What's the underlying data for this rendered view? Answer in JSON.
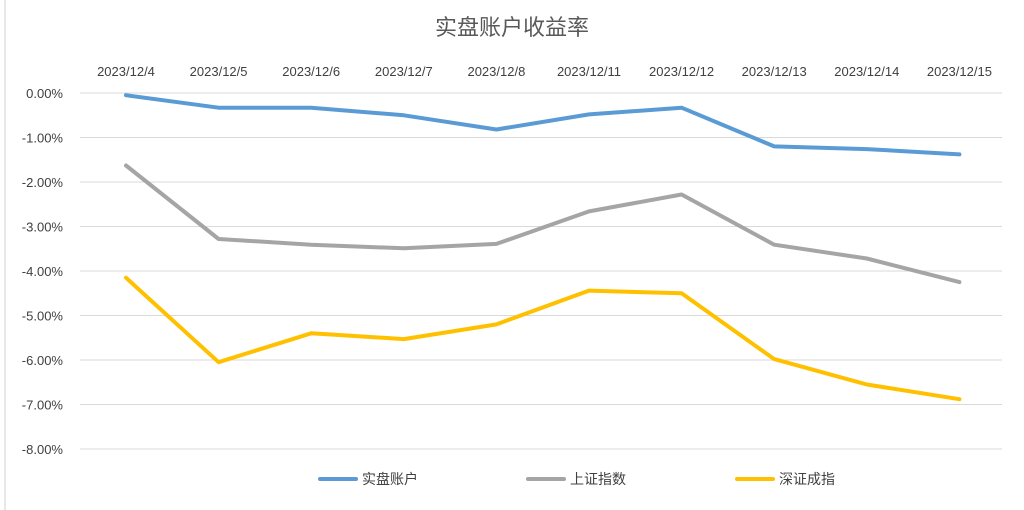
{
  "chart_data": {
    "type": "line",
    "title": "实盘账户收益率",
    "xlabel": "",
    "ylabel": "",
    "categories": [
      "2023/12/4",
      "2023/12/5",
      "2023/12/6",
      "2023/12/7",
      "2023/12/8",
      "2023/12/11",
      "2023/12/12",
      "2023/12/13",
      "2023/12/14",
      "2023/12/15"
    ],
    "ylim": [
      -8,
      0
    ],
    "yticks": [
      "0.00%",
      "-1.00%",
      "-2.00%",
      "-3.00%",
      "-4.00%",
      "-5.00%",
      "-6.00%",
      "-7.00%",
      "-8.00%"
    ],
    "x_axis_position": "top",
    "grid": true,
    "legend_position": "bottom",
    "series": [
      {
        "name": "实盘账户",
        "color": "#5b9bd5",
        "values": [
          -0.05,
          -0.33,
          -0.33,
          -0.5,
          -0.82,
          -0.48,
          -0.33,
          -1.2,
          -1.26,
          -1.38
        ]
      },
      {
        "name": "上证指数",
        "color": "#a5a5a5",
        "values": [
          -1.63,
          -3.28,
          -3.41,
          -3.49,
          -3.39,
          -2.66,
          -2.28,
          -3.41,
          -3.72,
          -4.25
        ]
      },
      {
        "name": "深证成指",
        "color": "#ffc000",
        "values": [
          -4.15,
          -6.05,
          -5.4,
          -5.53,
          -5.2,
          -4.44,
          -4.5,
          -5.98,
          -6.55,
          -6.88
        ]
      }
    ]
  }
}
